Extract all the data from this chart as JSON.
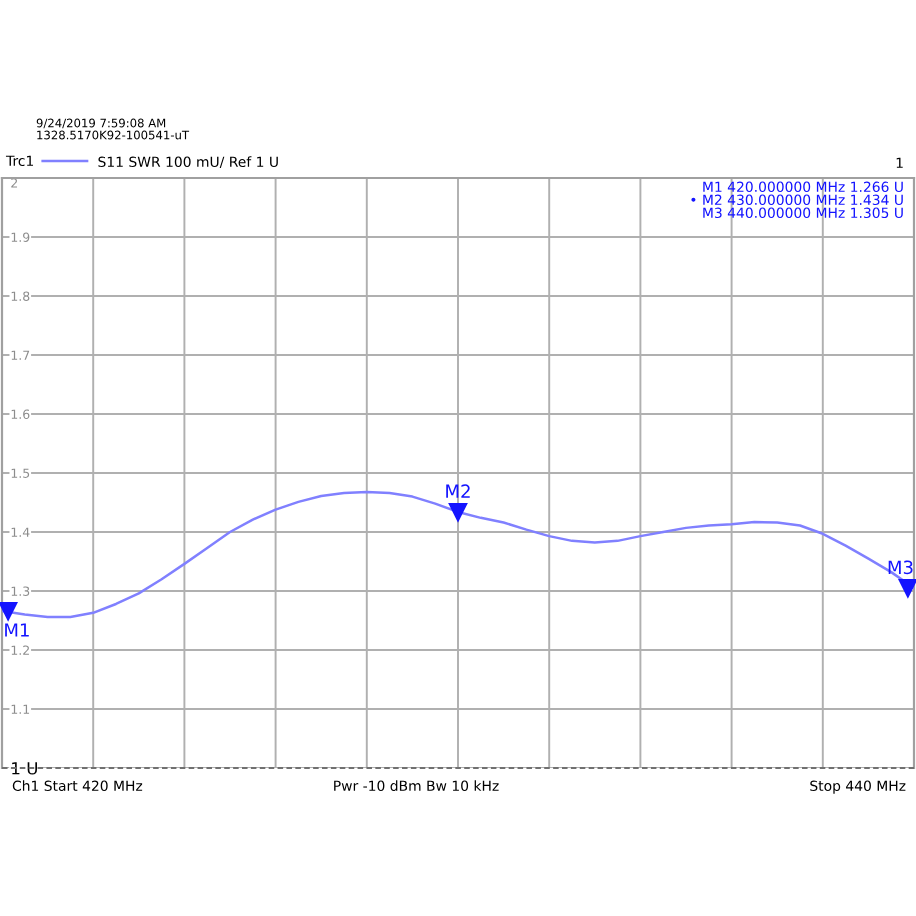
{
  "chart_data": {
    "type": "line",
    "categories": [
      null,
      null,
      null,
      null,
      null,
      null,
      null,
      null,
      null,
      null,
      null,
      null,
      null,
      null,
      null,
      null,
      null,
      null,
      null,
      null,
      null,
      null,
      null,
      null,
      null,
      null,
      null,
      null,
      null,
      null,
      null,
      null,
      null,
      null,
      null,
      null,
      null,
      null,
      null,
      null,
      null
    ],
    "series": [
      {
        "name": "Trc1",
        "color": "#8080ff",
        "values": [
          1.266,
          1.26,
          1.256,
          1.256,
          1.263,
          1.278,
          1.296,
          1.32,
          1.346,
          1.373,
          1.4,
          1.421,
          1.438,
          1.451,
          1.461,
          1.466,
          1.468,
          1.466,
          1.46,
          1.448,
          1.434,
          1.424,
          1.416,
          1.404,
          1.393,
          1.385,
          1.382,
          1.385,
          1.393,
          1.4,
          1.407,
          1.411,
          1.413,
          1.417,
          1.416,
          1.411,
          1.397,
          1.377,
          1.355,
          1.332,
          1.305
        ]
      },
      {
        "type": "scatter",
        "color": "#1414ff",
        "marker": "triangle",
        "values": [
          1.266,
          null,
          null,
          null,
          null,
          null,
          null,
          null,
          null,
          null,
          null,
          null,
          null,
          null,
          null,
          null,
          null,
          null,
          null,
          null,
          1.434,
          null,
          null,
          null,
          null,
          null,
          null,
          null,
          null,
          null,
          null,
          null,
          null,
          null,
          null,
          null,
          null,
          null,
          null,
          null,
          1.305
        ],
        "value_labels": [
          "M1",
          null,
          null,
          null,
          null,
          null,
          null,
          null,
          null,
          null,
          null,
          null,
          null,
          null,
          null,
          null,
          null,
          null,
          null,
          null,
          "M2",
          null,
          null,
          null,
          null,
          null,
          null,
          null,
          null,
          null,
          null,
          null,
          null,
          null,
          null,
          null,
          null,
          null,
          null,
          null,
          "M3"
        ]
      }
    ],
    "ylim": [
      1,
      2
    ],
    "yticks": [
      {
        "value": 1,
        "label": "1 U"
      },
      1.1,
      1.2,
      1.3,
      1.4,
      1.5,
      1.6,
      1.7,
      1.8,
      1.9,
      2
    ],
    "tick_labels": "y",
    "grid": true,
    "legend": "top left",
    "line_style": "solid",
    "ref_lines": [
      {
        "axis": "y",
        "value": 1,
        "color": "#707070",
        "line_style": "dashed"
      }
    ],
    "annotations": [
      "9/24/2019 7:59:08 AM",
      "1328.5170K92-100541-uT",
      "S11 SWR 100 mU/ Ref 1 U",
      "1",
      "M1 420.000000 MHz 1.266 U",
      "• M2 430.000000 MHz 1.434 U",
      "M3 440.000000 MHz 1.305 U",
      "Ch1 Start 420 MHz",
      "Pwr -10 dBm Bw 10 kHz",
      "Stop 440 MHz"
    ]
  }
}
